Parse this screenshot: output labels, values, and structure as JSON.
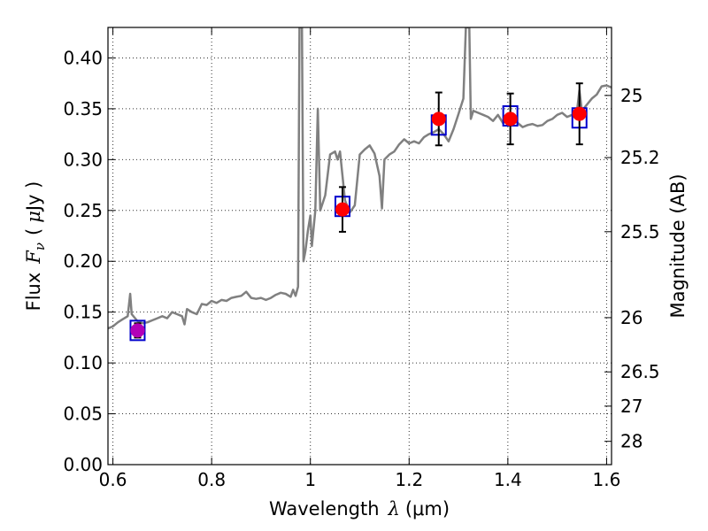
{
  "chart_data": {
    "type": "scatter",
    "xlabel": {
      "text": "Wavelength",
      "symbol": "λ",
      "unit": "(μm)"
    },
    "ylabel": {
      "text": "Flux",
      "symbol": "F",
      "subscript": "ν",
      "unit_open": "(",
      "unit_mu": "μ",
      "unit_rest": "Jy )"
    },
    "ylabel_right": "Magnitude (AB)",
    "xlim": [
      0.59,
      1.61
    ],
    "ylim": [
      0.0,
      0.43
    ],
    "grid": true,
    "x_ticks": [
      {
        "value": 0.6,
        "label": "0.6"
      },
      {
        "value": 0.8,
        "label": "0.8"
      },
      {
        "value": 1.0,
        "label": "1"
      },
      {
        "value": 1.2,
        "label": "1.2"
      },
      {
        "value": 1.4,
        "label": "1.4"
      },
      {
        "value": 1.6,
        "label": "1.6"
      }
    ],
    "y_ticks": [
      {
        "value": 0.0,
        "label": "0.00"
      },
      {
        "value": 0.05,
        "label": "0.05"
      },
      {
        "value": 0.1,
        "label": "0.10"
      },
      {
        "value": 0.15,
        "label": "0.15"
      },
      {
        "value": 0.2,
        "label": "0.20"
      },
      {
        "value": 0.25,
        "label": "0.25"
      },
      {
        "value": 0.3,
        "label": "0.30"
      },
      {
        "value": 0.35,
        "label": "0.35"
      },
      {
        "value": 0.4,
        "label": "0.40"
      }
    ],
    "right_ticks": [
      {
        "mag": 25,
        "label": "25"
      },
      {
        "mag": 25.2,
        "label": "25.2"
      },
      {
        "mag": 25.5,
        "label": "25.5"
      },
      {
        "mag": 26,
        "label": "26"
      },
      {
        "mag": 26.5,
        "label": "26.5"
      },
      {
        "mag": 27,
        "label": "27"
      },
      {
        "mag": 28,
        "label": "28"
      }
    ],
    "series": [
      {
        "kind": "line",
        "color": "#808080",
        "points": [
          [
            0.59,
            0.134
          ],
          [
            0.6,
            0.136
          ],
          [
            0.61,
            0.14
          ],
          [
            0.62,
            0.143
          ],
          [
            0.63,
            0.146
          ],
          [
            0.635,
            0.168
          ],
          [
            0.638,
            0.148
          ],
          [
            0.65,
            0.141
          ],
          [
            0.66,
            0.139
          ],
          [
            0.67,
            0.14
          ],
          [
            0.68,
            0.142
          ],
          [
            0.69,
            0.144
          ],
          [
            0.7,
            0.146
          ],
          [
            0.71,
            0.144
          ],
          [
            0.72,
            0.15
          ],
          [
            0.73,
            0.148
          ],
          [
            0.74,
            0.146
          ],
          [
            0.745,
            0.138
          ],
          [
            0.75,
            0.153
          ],
          [
            0.76,
            0.15
          ],
          [
            0.77,
            0.148
          ],
          [
            0.78,
            0.158
          ],
          [
            0.79,
            0.157
          ],
          [
            0.8,
            0.161
          ],
          [
            0.81,
            0.159
          ],
          [
            0.82,
            0.162
          ],
          [
            0.83,
            0.161
          ],
          [
            0.84,
            0.164
          ],
          [
            0.85,
            0.165
          ],
          [
            0.86,
            0.166
          ],
          [
            0.87,
            0.17
          ],
          [
            0.88,
            0.164
          ],
          [
            0.89,
            0.163
          ],
          [
            0.9,
            0.164
          ],
          [
            0.91,
            0.162
          ],
          [
            0.92,
            0.164
          ],
          [
            0.93,
            0.167
          ],
          [
            0.94,
            0.169
          ],
          [
            0.95,
            0.168
          ],
          [
            0.96,
            0.165
          ],
          [
            0.965,
            0.172
          ],
          [
            0.97,
            0.166
          ],
          [
            0.975,
            0.175
          ],
          [
            0.978,
            0.43
          ],
          [
            0.983,
            0.43
          ],
          [
            0.986,
            0.2
          ],
          [
            0.99,
            0.21
          ],
          [
            0.995,
            0.23
          ],
          [
            1.0,
            0.245
          ],
          [
            1.003,
            0.215
          ],
          [
            1.01,
            0.25
          ],
          [
            1.015,
            0.35
          ],
          [
            1.02,
            0.25
          ],
          [
            1.03,
            0.265
          ],
          [
            1.04,
            0.305
          ],
          [
            1.05,
            0.308
          ],
          [
            1.055,
            0.3
          ],
          [
            1.06,
            0.308
          ],
          [
            1.07,
            0.26
          ],
          [
            1.08,
            0.248
          ],
          [
            1.09,
            0.255
          ],
          [
            1.1,
            0.305
          ],
          [
            1.11,
            0.31
          ],
          [
            1.12,
            0.314
          ],
          [
            1.13,
            0.306
          ],
          [
            1.14,
            0.284
          ],
          [
            1.145,
            0.252
          ],
          [
            1.15,
            0.3
          ],
          [
            1.16,
            0.305
          ],
          [
            1.17,
            0.308
          ],
          [
            1.18,
            0.315
          ],
          [
            1.19,
            0.32
          ],
          [
            1.2,
            0.316
          ],
          [
            1.21,
            0.318
          ],
          [
            1.22,
            0.316
          ],
          [
            1.23,
            0.322
          ],
          [
            1.24,
            0.325
          ],
          [
            1.25,
            0.327
          ],
          [
            1.26,
            0.33
          ],
          [
            1.27,
            0.325
          ],
          [
            1.28,
            0.318
          ],
          [
            1.29,
            0.33
          ],
          [
            1.3,
            0.345
          ],
          [
            1.31,
            0.36
          ],
          [
            1.315,
            0.43
          ],
          [
            1.322,
            0.43
          ],
          [
            1.325,
            0.34
          ],
          [
            1.33,
            0.348
          ],
          [
            1.34,
            0.346
          ],
          [
            1.35,
            0.344
          ],
          [
            1.36,
            0.342
          ],
          [
            1.37,
            0.338
          ],
          [
            1.38,
            0.344
          ],
          [
            1.39,
            0.336
          ],
          [
            1.4,
            0.338
          ],
          [
            1.41,
            0.34
          ],
          [
            1.42,
            0.336
          ],
          [
            1.43,
            0.332
          ],
          [
            1.44,
            0.334
          ],
          [
            1.45,
            0.335
          ],
          [
            1.46,
            0.333
          ],
          [
            1.47,
            0.334
          ],
          [
            1.48,
            0.338
          ],
          [
            1.49,
            0.34
          ],
          [
            1.5,
            0.344
          ],
          [
            1.51,
            0.346
          ],
          [
            1.52,
            0.342
          ],
          [
            1.53,
            0.344
          ],
          [
            1.54,
            0.348
          ],
          [
            1.545,
            0.368
          ],
          [
            1.55,
            0.348
          ],
          [
            1.56,
            0.354
          ],
          [
            1.57,
            0.36
          ],
          [
            1.58,
            0.364
          ],
          [
            1.59,
            0.372
          ],
          [
            1.6,
            0.373
          ],
          [
            1.61,
            0.371
          ]
        ]
      },
      {
        "kind": "model-boxes",
        "color": "#0000cc",
        "points": [
          [
            0.65,
            0.132
          ],
          [
            1.065,
            0.254
          ],
          [
            1.26,
            0.334
          ],
          [
            1.405,
            0.343
          ],
          [
            1.545,
            0.341
          ]
        ]
      },
      {
        "kind": "observed",
        "color": "#ff0000",
        "points": [
          {
            "x": 0.65,
            "y": 0.132,
            "err": 0.007
          },
          {
            "x": 1.065,
            "y": 0.251,
            "err": 0.022
          },
          {
            "x": 1.26,
            "y": 0.34,
            "err": 0.026
          },
          {
            "x": 1.405,
            "y": 0.34,
            "err": 0.025
          },
          {
            "x": 1.545,
            "y": 0.345,
            "err": 0.03
          }
        ]
      }
    ]
  }
}
